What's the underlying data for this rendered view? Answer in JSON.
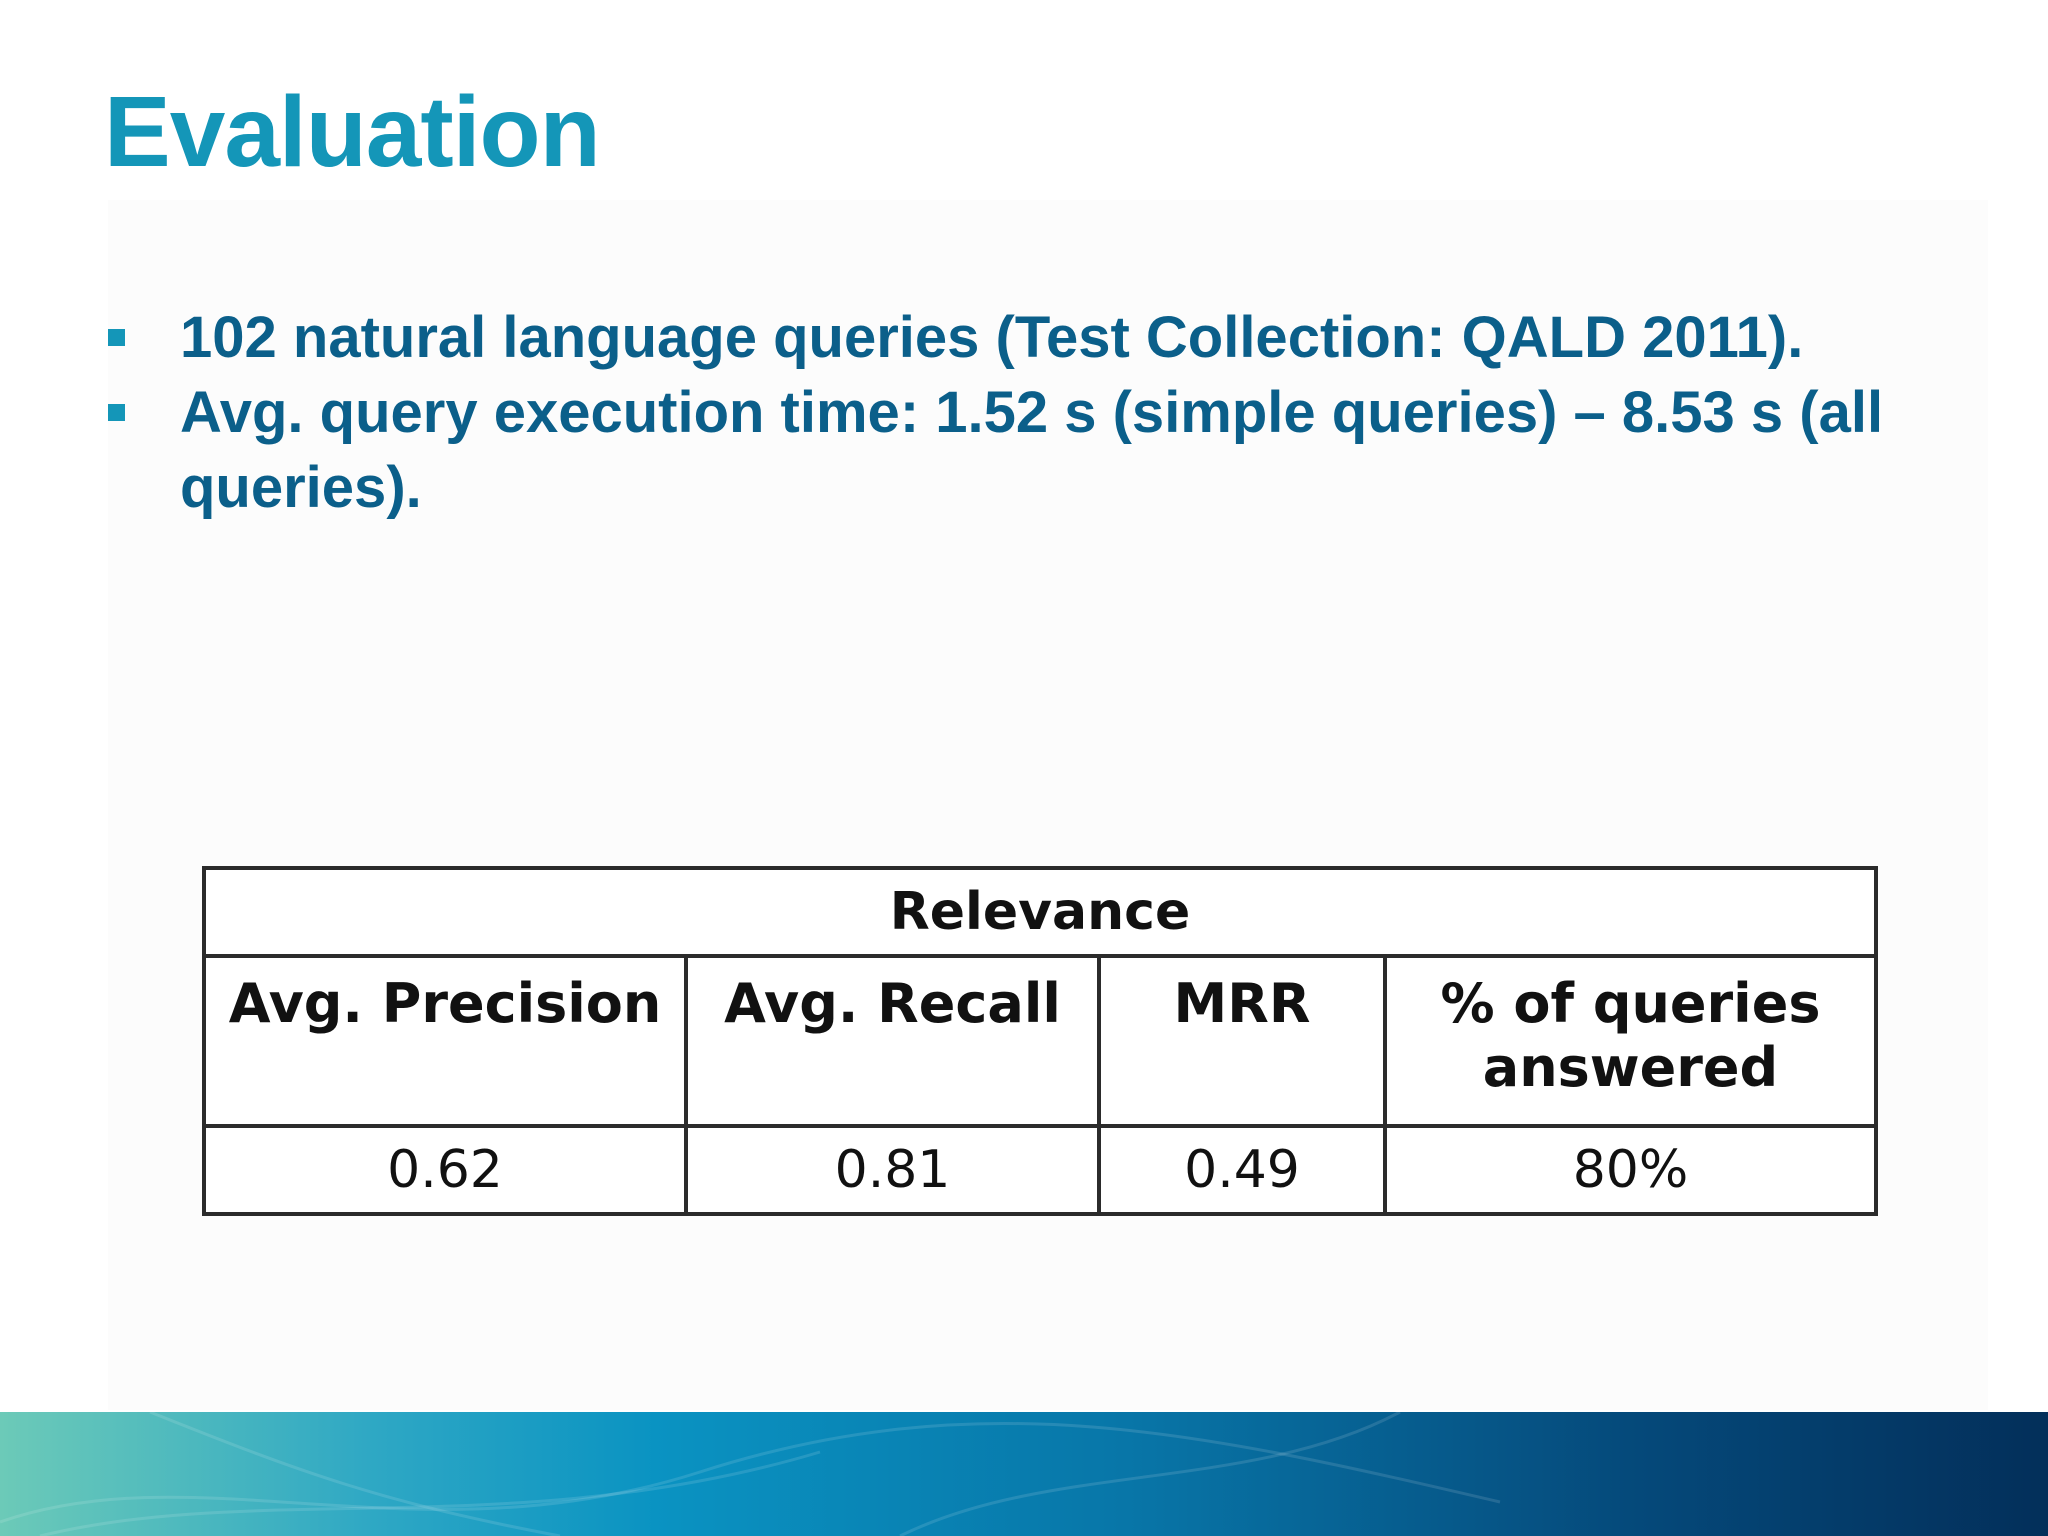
{
  "slide": {
    "title": "Evaluation",
    "bullets": [
      "102 natural language queries (Test Collection: QALD 2011).",
      "Avg. query execution time: 1.52 s (simple queries) – 8.53 s (all queries)."
    ]
  },
  "table": {
    "group_header": "Relevance",
    "columns": [
      "Avg. Precision",
      "Avg. Recall",
      "MRR",
      "% of queries answered"
    ],
    "values": [
      "0.62",
      "0.81",
      "0.49",
      "80%"
    ]
  },
  "colors": {
    "title": "#1496b8",
    "bullet_text": "#0b5f8a",
    "bullet_marker": "#1496b8",
    "footer_start": "#6ccab8",
    "footer_end": "#032f5a"
  }
}
